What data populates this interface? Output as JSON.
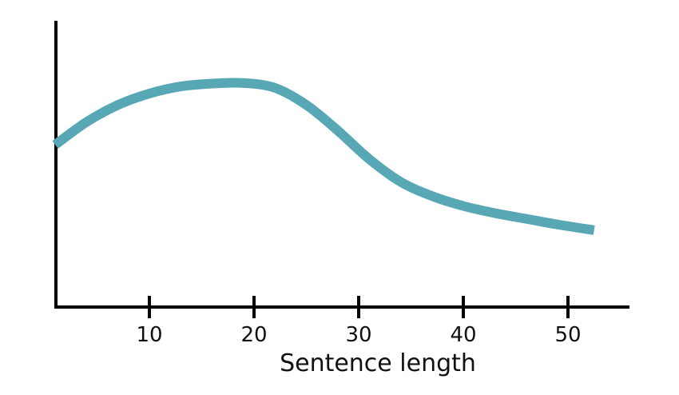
{
  "chart_data": {
    "type": "line",
    "title": "",
    "xlabel": "Sentence length",
    "ylabel": "",
    "xlim": [
      1,
      56
    ],
    "x_ticks": [
      10,
      20,
      30,
      40,
      50
    ],
    "x_tick_labels": [
      "10",
      "20",
      "30",
      "40",
      "50"
    ],
    "y_ticks_shown": false,
    "grid": false,
    "legend": "none",
    "series": [
      {
        "color": "#58a7b5",
        "x": [
          1,
          4,
          7,
          10,
          13,
          16,
          19,
          22,
          25,
          28,
          31,
          34,
          37,
          40,
          43,
          46,
          49,
          52.5
        ],
        "y": [
          0.57,
          0.65,
          0.71,
          0.75,
          0.775,
          0.785,
          0.787,
          0.77,
          0.71,
          0.62,
          0.52,
          0.44,
          0.39,
          0.355,
          0.33,
          0.31,
          0.29,
          0.27
        ]
      }
    ],
    "ylim": [
      0,
      1
    ]
  }
}
